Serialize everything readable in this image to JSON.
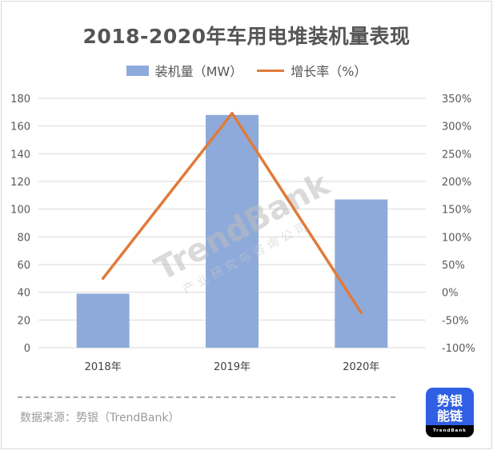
{
  "chart_data": {
    "type": "bar",
    "title": "2018-2020年车用电堆装机量表现",
    "categories": [
      "2018年",
      "2019年",
      "2020年"
    ],
    "series": [
      {
        "name": "装机量（MW）",
        "type": "bar",
        "axis": "left",
        "color": "#8eaadb",
        "values": [
          39,
          168,
          107
        ]
      },
      {
        "name": "增长率（%）",
        "type": "line",
        "axis": "right",
        "color": "#e07b39",
        "values": [
          25,
          323,
          -37
        ]
      }
    ],
    "xlabel": "",
    "ylabel": "",
    "ylim": [
      0,
      180
    ],
    "y2lim": [
      -100,
      350
    ],
    "yticks": [
      "0",
      "20",
      "40",
      "60",
      "80",
      "100",
      "120",
      "140",
      "160",
      "180"
    ],
    "y2ticks": [
      "-100%",
      "-50%",
      "0%",
      "50%",
      "100%",
      "150%",
      "200%",
      "250%",
      "300%",
      "350%"
    ],
    "grid": true,
    "legend_position": "top"
  },
  "legend": {
    "bar_label": "装机量（MW）",
    "line_label": "增长率（%）"
  },
  "watermark": {
    "brand": "TrendBank",
    "subtitle": "产 业 研 究 与 咨 询 公 司"
  },
  "footer": {
    "source": "数据来源：势银（TrendBank）",
    "logo_line1": "势银",
    "logo_line2": "能链",
    "logo_brand": "TrendBank"
  }
}
